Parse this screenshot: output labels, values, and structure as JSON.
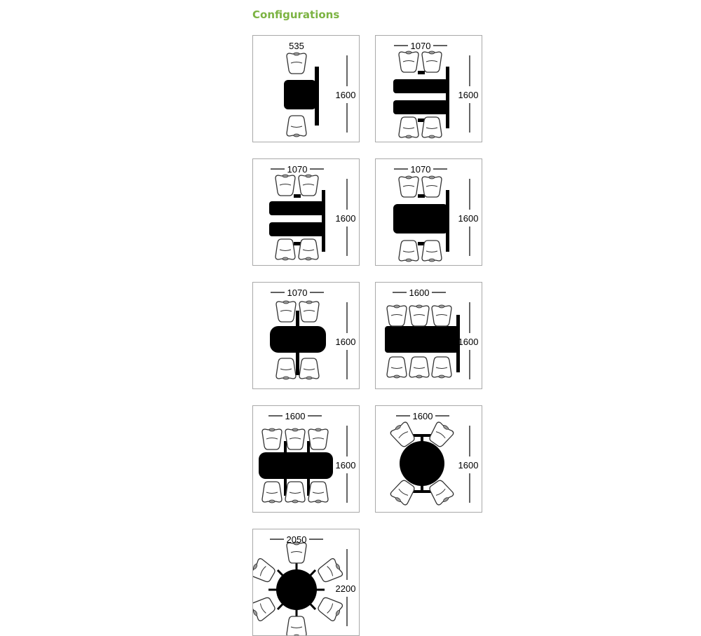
{
  "heading": "Configurations",
  "accent_color": "#7cb342",
  "configurations": [
    {
      "width_label": "535",
      "height_label": "1600"
    },
    {
      "width_label": "1070",
      "height_label": "1600"
    },
    {
      "width_label": "1070",
      "height_label": "1600"
    },
    {
      "width_label": "1070",
      "height_label": "1600"
    },
    {
      "width_label": "1070",
      "height_label": "1600"
    },
    {
      "width_label": "1600",
      "height_label": "1600"
    },
    {
      "width_label": "1600",
      "height_label": "1600"
    },
    {
      "width_label": "1600",
      "height_label": "1600"
    },
    {
      "width_label": "2050",
      "height_label": "2200"
    }
  ]
}
